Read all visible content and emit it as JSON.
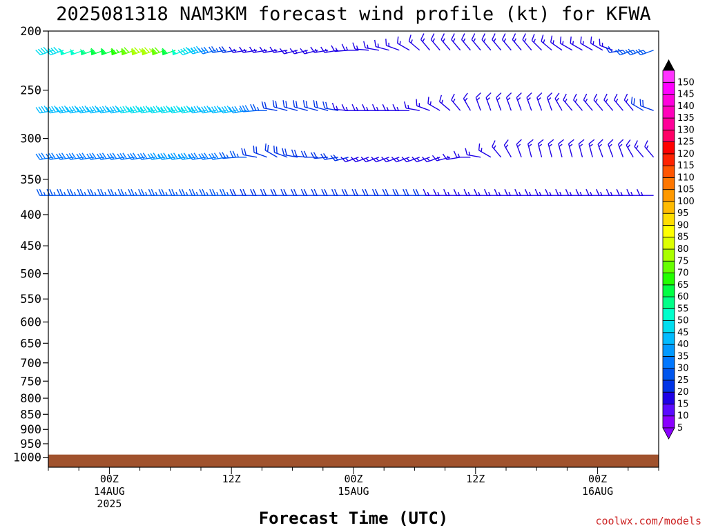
{
  "chart_data": {
    "type": "wind-barb-time-height",
    "title": "2025081318 NAM3KM forecast wind profile (kt) for KFWA",
    "xlabel": "Forecast Time (UTC)",
    "ylabel": "",
    "credit": "coolwx.com/models",
    "units": "kt",
    "y_axis": {
      "log_scale": true,
      "reversed": true,
      "range": [
        200,
        1000
      ],
      "ticks": [
        200,
        250,
        300,
        350,
        400,
        450,
        500,
        550,
        600,
        650,
        700,
        750,
        800,
        850,
        900,
        950,
        1000
      ]
    },
    "x_axis": {
      "range_hours_from_init": [
        0,
        60
      ],
      "ticks": [
        {
          "hour": 6,
          "lines": [
            "00Z",
            "14AUG",
            "2025"
          ]
        },
        {
          "hour": 18,
          "lines": [
            "12Z"
          ]
        },
        {
          "hour": 30,
          "lines": [
            "00Z",
            "15AUG"
          ]
        },
        {
          "hour": 42,
          "lines": [
            "12Z"
          ]
        },
        {
          "hour": 54,
          "lines": [
            "00Z",
            "16AUG"
          ]
        }
      ]
    },
    "ground_color": "#a0522d",
    "colorbar": {
      "levels": [
        5,
        10,
        15,
        20,
        25,
        30,
        35,
        40,
        45,
        50,
        55,
        60,
        65,
        70,
        75,
        80,
        85,
        90,
        95,
        100,
        105,
        110,
        115,
        120,
        125,
        130,
        135,
        140,
        145,
        150
      ],
      "colors": [
        "#8a00ff",
        "#5a0aff",
        "#1e00e6",
        "#0033e6",
        "#0055ee",
        "#0077ff",
        "#0099ff",
        "#00bbff",
        "#00ddee",
        "#00ffcc",
        "#00ff88",
        "#00ff44",
        "#22ff00",
        "#66ff00",
        "#aaff00",
        "#ddff00",
        "#ffff00",
        "#ffdd00",
        "#ffbb00",
        "#ff9900",
        "#ff7700",
        "#ff5500",
        "#ff2200",
        "#ff0000",
        "#ff0066",
        "#ff0099",
        "#ff00bb",
        "#ff00dd",
        "#ff00ff",
        "#ff33ff"
      ]
    },
    "series": [
      {
        "pressure": 215,
        "speed": [
          45,
          45,
          50,
          50,
          55,
          60,
          60,
          65,
          70,
          75,
          75,
          70,
          60,
          50,
          45,
          40,
          30,
          25,
          20,
          15,
          15,
          15,
          15,
          15,
          15,
          15,
          15,
          15,
          15,
          15,
          15,
          15,
          15,
          15,
          15,
          15,
          15,
          15,
          15,
          15,
          15,
          15,
          15,
          15,
          15,
          15,
          15,
          15,
          15,
          15,
          15,
          15,
          15,
          15,
          15,
          15,
          20,
          25,
          25,
          25
        ],
        "dir": [
          250,
          250,
          250,
          250,
          250,
          250,
          250,
          250,
          250,
          250,
          250,
          250,
          250,
          250,
          250,
          255,
          255,
          260,
          260,
          260,
          260,
          260,
          260,
          260,
          255,
          255,
          255,
          260,
          260,
          265,
          270,
          275,
          280,
          285,
          290,
          300,
          310,
          320,
          320,
          320,
          320,
          320,
          320,
          320,
          320,
          320,
          320,
          320,
          315,
          310,
          305,
          300,
          300,
          300,
          300,
          290,
          260,
          250,
          250,
          250
        ]
      },
      {
        "pressure": 270,
        "speed": [
          40,
          40,
          40,
          40,
          40,
          40,
          40,
          40,
          45,
          45,
          45,
          45,
          45,
          45,
          45,
          40,
          40,
          40,
          40,
          35,
          30,
          25,
          20,
          20,
          20,
          20,
          20,
          20,
          20,
          15,
          15,
          15,
          15,
          15,
          15,
          15,
          15,
          15,
          15,
          15,
          15,
          15,
          15,
          15,
          15,
          15,
          15,
          15,
          15,
          15,
          15,
          15,
          15,
          15,
          15,
          15,
          15,
          15,
          20,
          20
        ],
        "dir": [
          260,
          260,
          260,
          260,
          260,
          260,
          260,
          260,
          260,
          260,
          260,
          260,
          260,
          260,
          260,
          260,
          260,
          260,
          260,
          260,
          265,
          270,
          280,
          285,
          285,
          285,
          285,
          285,
          280,
          275,
          270,
          270,
          270,
          270,
          270,
          270,
          280,
          290,
          300,
          310,
          320,
          330,
          340,
          340,
          340,
          340,
          340,
          340,
          340,
          340,
          330,
          320,
          320,
          320,
          320,
          320,
          320,
          320,
          300,
          290
        ]
      },
      {
        "pressure": 322,
        "speed": [
          30,
          30,
          30,
          30,
          30,
          30,
          30,
          30,
          30,
          30,
          30,
          35,
          35,
          35,
          35,
          30,
          30,
          30,
          25,
          25,
          20,
          20,
          20,
          20,
          20,
          20,
          20,
          20,
          20,
          20,
          15,
          15,
          15,
          15,
          15,
          15,
          15,
          15,
          15,
          15,
          15,
          15,
          15,
          15,
          15,
          15,
          15,
          15,
          15,
          15,
          15,
          15,
          15,
          15,
          15,
          15,
          15,
          15,
          15,
          15
        ],
        "dir": [
          260,
          260,
          260,
          260,
          260,
          260,
          260,
          260,
          260,
          260,
          260,
          260,
          260,
          260,
          260,
          260,
          260,
          260,
          265,
          270,
          280,
          290,
          300,
          290,
          280,
          275,
          270,
          265,
          260,
          255,
          250,
          250,
          250,
          250,
          250,
          250,
          250,
          250,
          250,
          255,
          260,
          270,
          280,
          300,
          320,
          330,
          340,
          345,
          345,
          345,
          345,
          345,
          345,
          345,
          340,
          340,
          340,
          330,
          320,
          320
        ]
      },
      {
        "pressure": 372,
        "speed": [
          25,
          25,
          25,
          25,
          25,
          25,
          25,
          25,
          25,
          25,
          25,
          25,
          25,
          25,
          25,
          25,
          25,
          25,
          25,
          20,
          20,
          20,
          20,
          20,
          20,
          20,
          20,
          20,
          20,
          20,
          20,
          20,
          20,
          20,
          20,
          20,
          20,
          20,
          15,
          15,
          15,
          15,
          15,
          15,
          15,
          15,
          15,
          15,
          15,
          15,
          15,
          15,
          15,
          15,
          15,
          15,
          15,
          15,
          15,
          15
        ],
        "dir": [
          270,
          270,
          270,
          270,
          270,
          270,
          270,
          270,
          270,
          270,
          270,
          270,
          270,
          270,
          270,
          270,
          270,
          270,
          270,
          270,
          270,
          270,
          270,
          270,
          270,
          270,
          270,
          270,
          270,
          270,
          270,
          270,
          270,
          270,
          270,
          270,
          270,
          270,
          270,
          270,
          270,
          270,
          270,
          270,
          270,
          270,
          270,
          270,
          270,
          270,
          270,
          270,
          270,
          270,
          270,
          270,
          270,
          270,
          270,
          270
        ]
      }
    ]
  }
}
